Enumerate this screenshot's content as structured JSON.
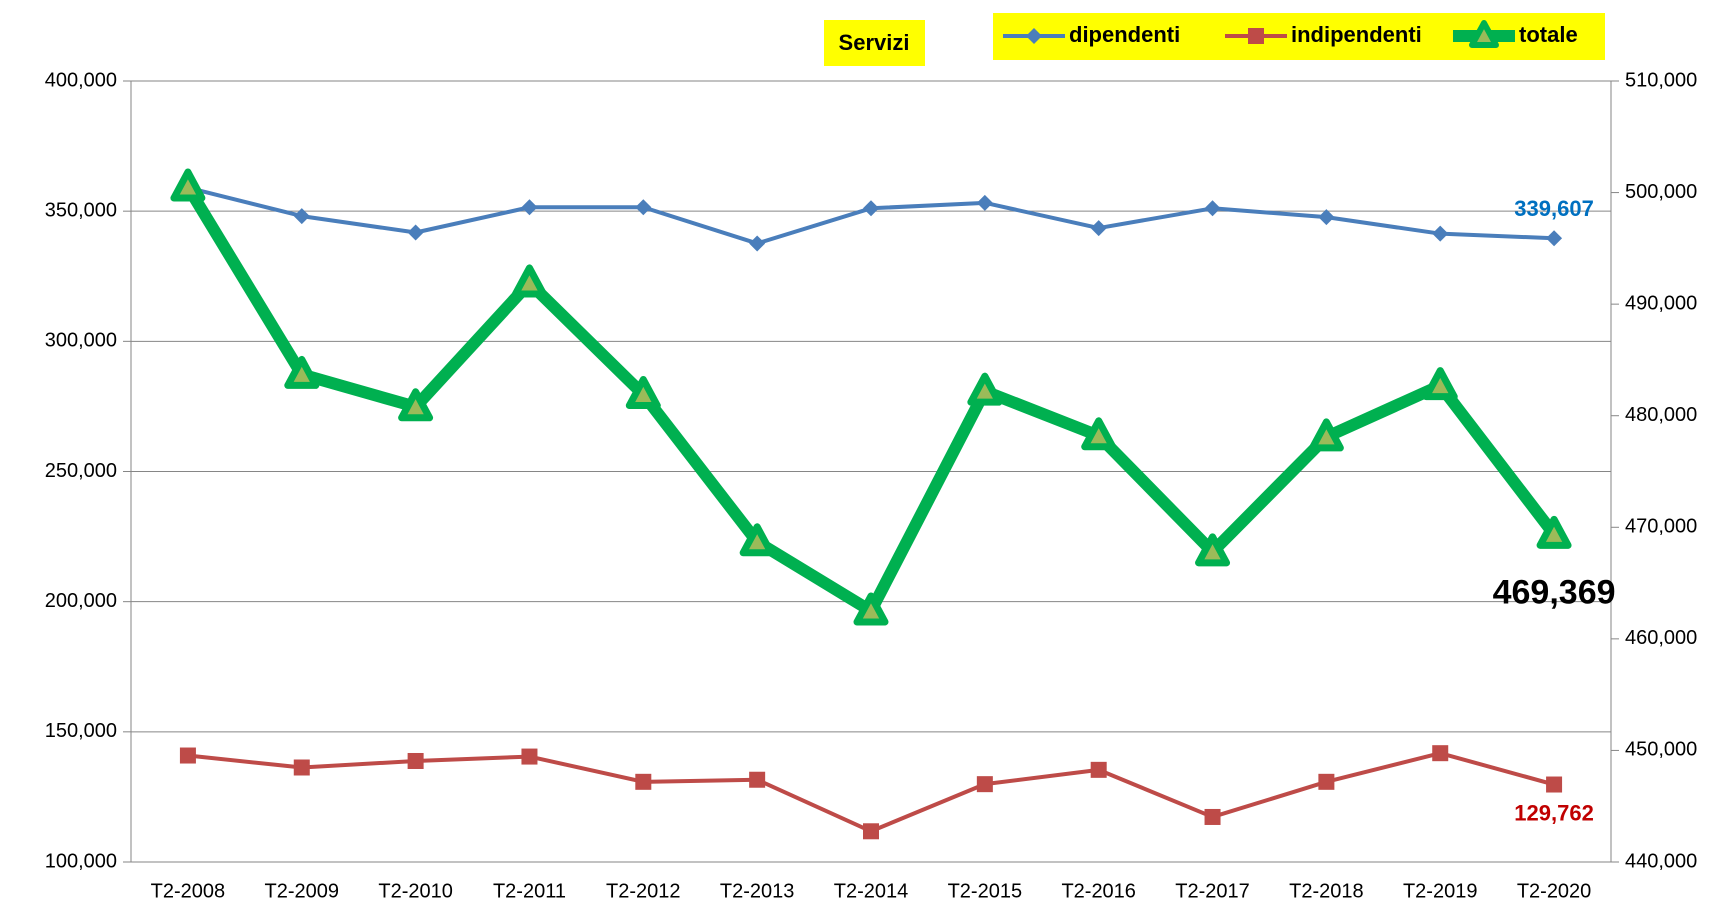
{
  "chart_data": {
    "type": "line",
    "title": "Servizi",
    "categories": [
      "T2-2008",
      "T2-2009",
      "T2-2010",
      "T2-2011",
      "T2-2012",
      "T2-2013",
      "T2-2014",
      "T2-2015",
      "T2-2016",
      "T2-2017",
      "T2-2018",
      "T2-2019",
      "T2-2020"
    ],
    "series": [
      {
        "name": "dipendenti",
        "color": "#4a7ebb",
        "values": [
          359000,
          348100,
          341800,
          351500,
          351500,
          337600,
          351100,
          353200,
          343500,
          351100,
          347700,
          341350,
          339607
        ],
        "value_labels": [
          null,
          null,
          null,
          null,
          null,
          null,
          null,
          null,
          null,
          null,
          null,
          null,
          "339,607"
        ]
      },
      {
        "name": "indipendenti",
        "color": "#be4b48",
        "values": [
          140900,
          136300,
          138800,
          140500,
          130800,
          131600,
          111800,
          129900,
          135400,
          117300,
          130800,
          141800,
          129762
        ],
        "value_labels": [
          null,
          null,
          null,
          null,
          null,
          null,
          null,
          null,
          null,
          null,
          null,
          null,
          "129,762"
        ]
      },
      {
        "name": "totale",
        "color": "#00b050",
        "axis": "y2",
        "values": [
          500500,
          483700,
          480800,
          491900,
          481900,
          468700,
          462500,
          482200,
          478200,
          467800,
          478100,
          482700,
          469369
        ],
        "value_labels": [
          null,
          null,
          null,
          null,
          null,
          null,
          null,
          null,
          null,
          null,
          null,
          null,
          "469,369"
        ]
      }
    ],
    "ylim": [
      100000,
      400000
    ],
    "yticks": [
      {
        "value": 100000,
        "label": "100,000"
      },
      {
        "value": 150000,
        "label": "150,000"
      },
      {
        "value": 200000,
        "label": "200,000"
      },
      {
        "value": 250000,
        "label": "250,000"
      },
      {
        "value": 300000,
        "label": "300,000"
      },
      {
        "value": 350000,
        "label": "350,000"
      },
      {
        "value": 400000,
        "label": "400,000"
      }
    ],
    "y2lim": [
      440000,
      510000
    ],
    "y2ticks": [
      {
        "value": 440000,
        "label": "440,000"
      },
      {
        "value": 450000,
        "label": "450,000"
      },
      {
        "value": 460000,
        "label": "460,000"
      },
      {
        "value": 470000,
        "label": "470,000"
      },
      {
        "value": 480000,
        "label": "480,000"
      },
      {
        "value": 490000,
        "label": "490,000"
      },
      {
        "value": 500000,
        "label": "500,000"
      },
      {
        "value": 510000,
        "label": "510,000"
      }
    ],
    "grid": true,
    "legend": "top"
  }
}
